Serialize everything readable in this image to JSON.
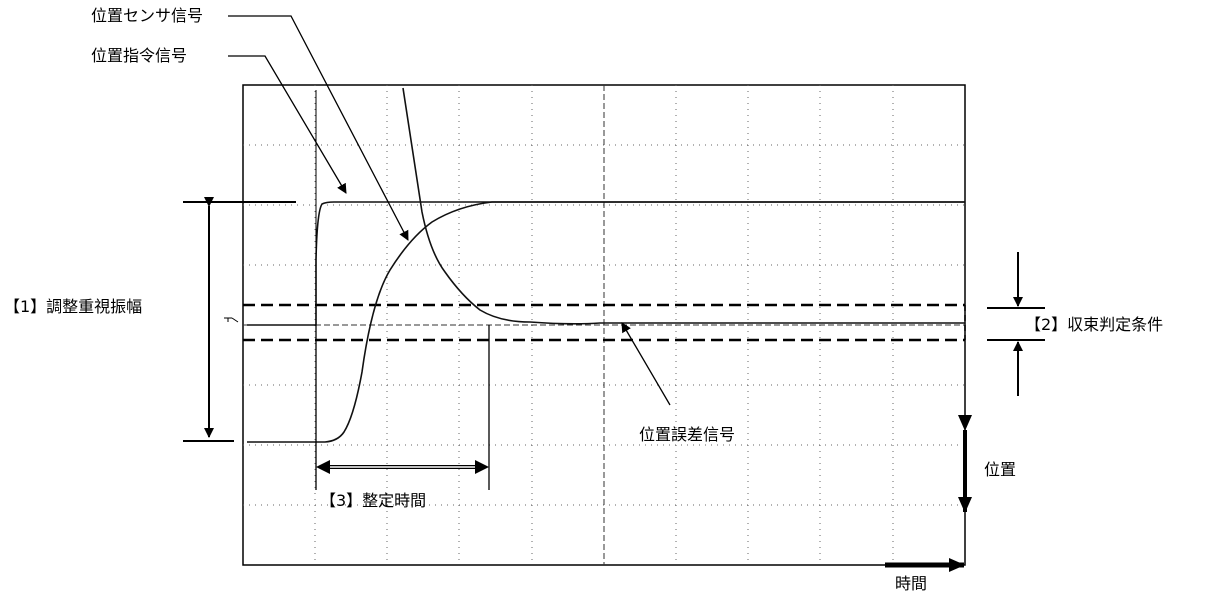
{
  "labels": {
    "sensor_signal": "位置センサ信号",
    "command_signal": "位置指令信号",
    "amplitude": "【1】調整重視振幅",
    "convergence": "【2】収束判定条件",
    "settling_time": "【3】整定時間",
    "error_signal": "位置誤差信号",
    "position_axis": "位置",
    "time_axis": "時間"
  },
  "scope": {
    "grid_columns": 10,
    "grid_rows": 8,
    "screen_color": "#ffffff",
    "trace_color": "#111111"
  }
}
